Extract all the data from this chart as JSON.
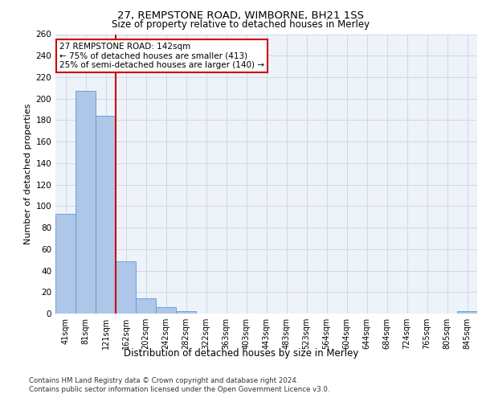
{
  "title1": "27, REMPSTONE ROAD, WIMBORNE, BH21 1SS",
  "title2": "Size of property relative to detached houses in Merley",
  "xlabel": "Distribution of detached houses by size in Merley",
  "ylabel": "Number of detached properties",
  "bar_labels": [
    "41sqm",
    "81sqm",
    "121sqm",
    "162sqm",
    "202sqm",
    "242sqm",
    "282sqm",
    "322sqm",
    "363sqm",
    "403sqm",
    "443sqm",
    "483sqm",
    "523sqm",
    "564sqm",
    "604sqm",
    "644sqm",
    "684sqm",
    "724sqm",
    "765sqm",
    "805sqm",
    "845sqm"
  ],
  "bar_values": [
    93,
    207,
    184,
    49,
    14,
    6,
    2,
    0,
    0,
    0,
    0,
    0,
    0,
    0,
    0,
    0,
    0,
    0,
    0,
    0,
    2
  ],
  "bar_color": "#aec6e8",
  "bar_edge_color": "#5b9bd5",
  "grid_color": "#d0d8e8",
  "bg_color": "#eef2f9",
  "annotation_text": "27 REMPSTONE ROAD: 142sqm\n← 75% of detached houses are smaller (413)\n25% of semi-detached houses are larger (140) →",
  "vline_x_index": 2.5,
  "annotation_box_color": "#ffffff",
  "annotation_box_edge": "#cc0000",
  "footer_line1": "Contains HM Land Registry data © Crown copyright and database right 2024.",
  "footer_line2": "Contains public sector information licensed under the Open Government Licence v3.0.",
  "ylim": [
    0,
    260
  ],
  "yticks": [
    0,
    20,
    40,
    60,
    80,
    100,
    120,
    140,
    160,
    180,
    200,
    220,
    240,
    260
  ]
}
